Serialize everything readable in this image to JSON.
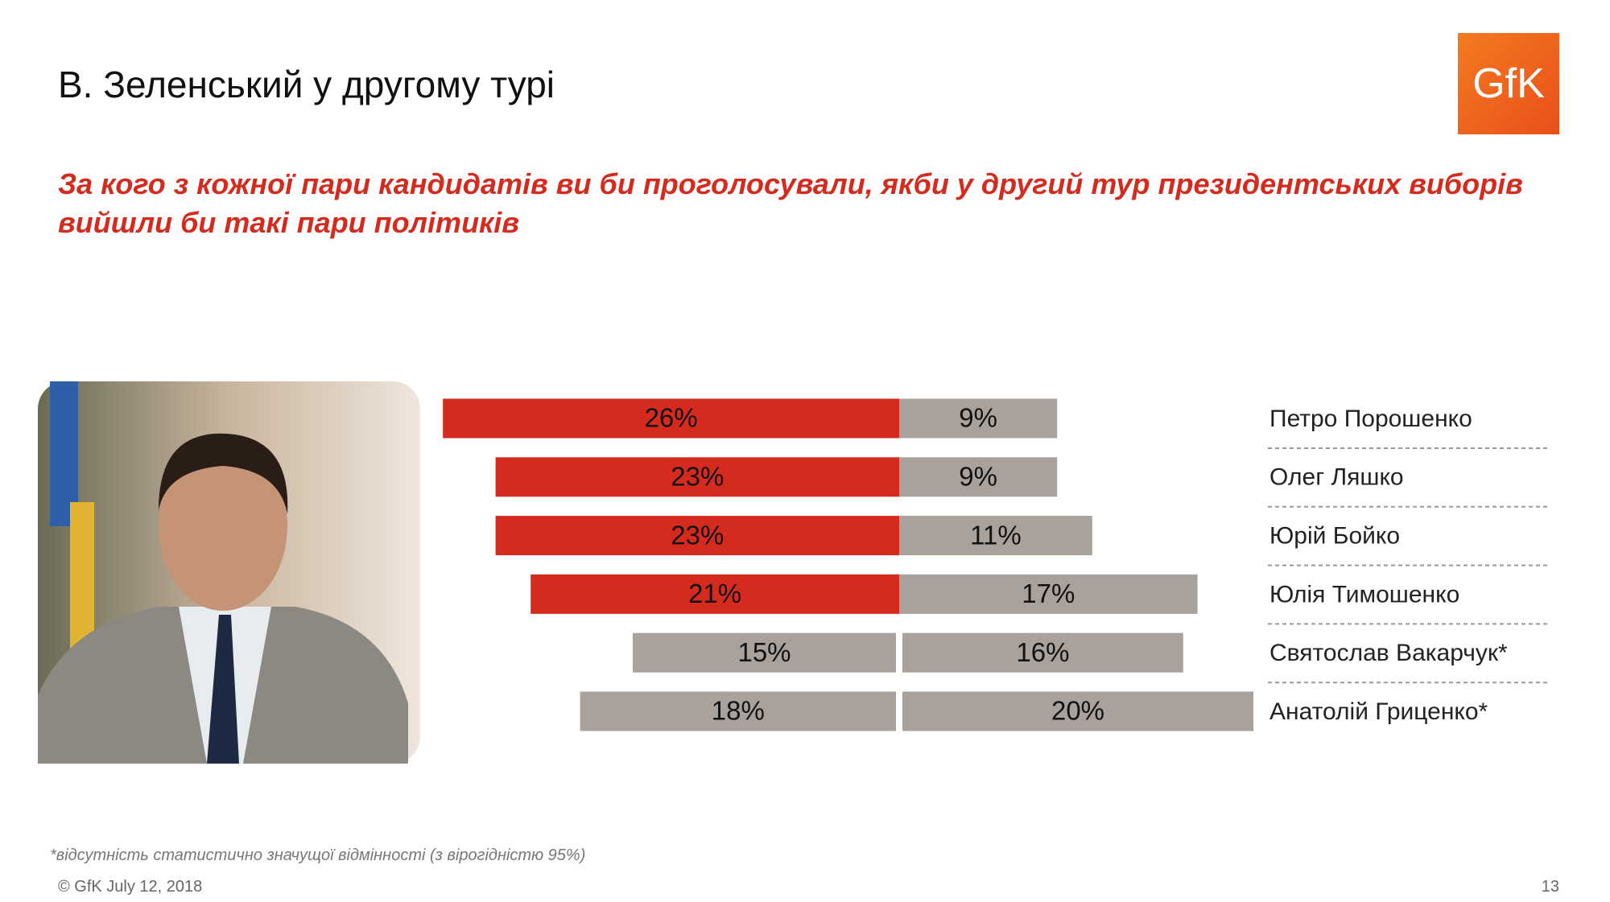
{
  "header": {
    "title": "В. Зеленський у другому турі",
    "logo": "GfK"
  },
  "chart_data": {
    "type": "diverging-bar",
    "title": "За кого з кожної пари кандидатів ви би проголосували, якби у другий тур президентських виборів вийшли би такі пари політиків",
    "categories": [
      "Петро Порошенко",
      "Олег Ляшко",
      "Юрій Бойко",
      "Юлія Тимошенко",
      "Святослав Вакарчук*",
      "Анатолій Гриценко*"
    ],
    "series": [
      {
        "colors": [
          "#d52b1e",
          "#d52b1e",
          "#d52b1e",
          "#d52b1e",
          "#a8a19c",
          "#a8a19c"
        ],
        "values": [
          26,
          23,
          23,
          21,
          15,
          18
        ],
        "value_labels": [
          "26%",
          "23%",
          "23%",
          "21%",
          "15%",
          "18%"
        ]
      },
      {
        "color": "#a8a19c",
        "values": [
          9,
          9,
          11,
          17,
          16,
          20
        ],
        "value_labels": [
          "9%",
          "9%",
          "11%",
          "17%",
          "16%",
          "20%"
        ]
      }
    ]
  },
  "footer": {
    "note": "*відсутність статистично значущої відмінності (з вірогідністю 95%)",
    "copyright": "© GfK July 12, 2018",
    "page": "13"
  }
}
